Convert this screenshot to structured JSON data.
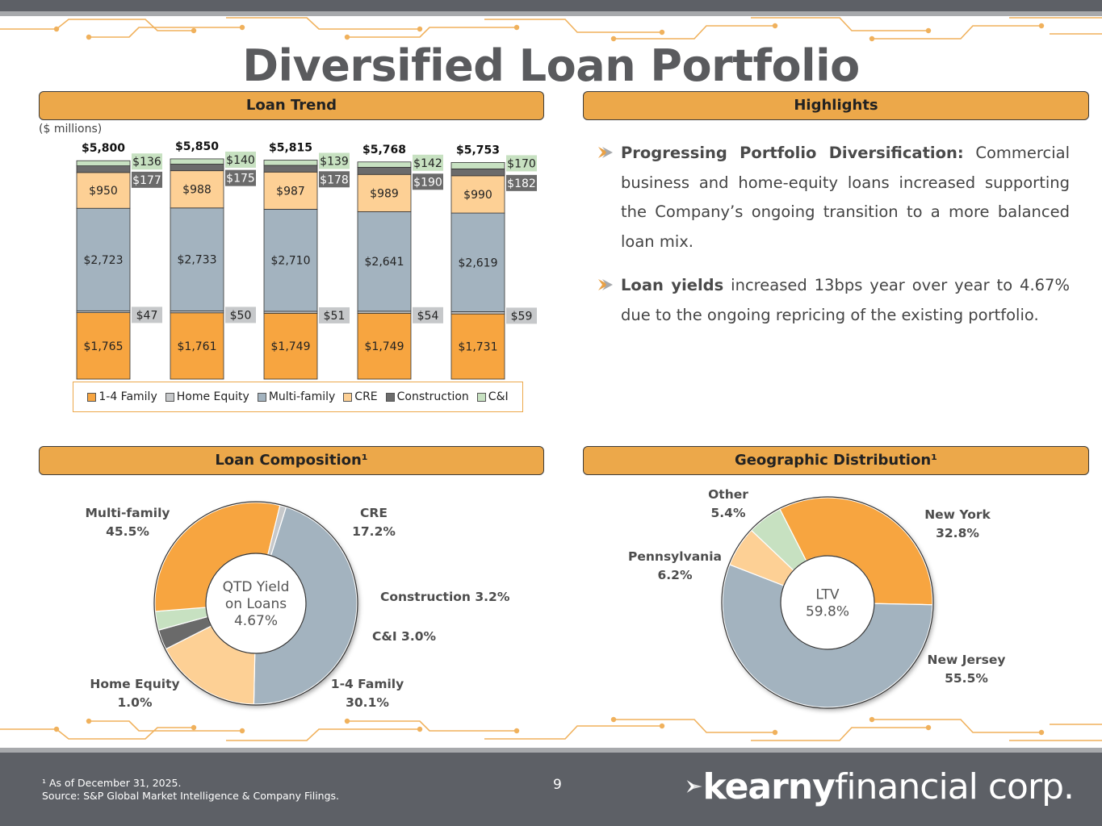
{
  "title": "Diversified Loan Portfolio",
  "sections": {
    "loan_trend": "Loan Trend",
    "highlights": "Highlights",
    "composition": "Loan Composition¹",
    "geo": "Geographic Distribution¹"
  },
  "units_label": "($ millions)",
  "colors": {
    "family_1_4": "#f7a540",
    "home_equity": "#c6c8ca",
    "multi_family": "#a3b3bf",
    "cre": "#fdd095",
    "construction": "#6b6b6b",
    "ci": "#c7e1c1",
    "header_bg": "#eca84a",
    "footer_bg": "#5d6066"
  },
  "highlights": [
    {
      "bold": "Progressing Portfolio Diversification:",
      "text": " Commercial business and home-equity loans increased supporting the Company’s ongoing transition to a more balanced loan mix."
    },
    {
      "bold": "Loan yields",
      "text": " increased 13bps year over year to 4.67% due to the ongoing repricing of the existing portfolio."
    }
  ],
  "chart_data": [
    {
      "type": "bar",
      "stacked": true,
      "title": "Loan Trend",
      "units": "($ millions)",
      "totals": [
        "$5,800",
        "$5,850",
        "$5,815",
        "$5,768",
        "$5,753"
      ],
      "series": [
        {
          "name": "1-4 Family",
          "values": [
            1765,
            1761,
            1749,
            1749,
            1731
          ],
          "labels": [
            "$1,765",
            "$1,761",
            "$1,749",
            "$1,749",
            "$1,731"
          ],
          "color": "#f7a540"
        },
        {
          "name": "Home Equity",
          "values": [
            47,
            50,
            51,
            54,
            59
          ],
          "labels": [
            "$47",
            "$50",
            "$51",
            "$54",
            "$59"
          ],
          "color": "#c6c8ca"
        },
        {
          "name": "Multi-family",
          "values": [
            2723,
            2733,
            2710,
            2641,
            2619
          ],
          "labels": [
            "$2,723",
            "$2,733",
            "$2,710",
            "$2,641",
            "$2,619"
          ],
          "color": "#a3b3bf"
        },
        {
          "name": "CRE",
          "values": [
            950,
            988,
            987,
            989,
            990
          ],
          "labels": [
            "$950",
            "$988",
            "$987",
            "$989",
            "$990"
          ],
          "color": "#fdd095"
        },
        {
          "name": "Construction",
          "values": [
            177,
            175,
            178,
            190,
            182
          ],
          "labels": [
            "$177",
            "$175",
            "$178",
            "$190",
            "$182"
          ],
          "color": "#6b6b6b"
        },
        {
          "name": "C&I",
          "values": [
            136,
            140,
            139,
            142,
            170
          ],
          "labels": [
            "$136",
            "$140",
            "$139",
            "$142",
            "$170"
          ],
          "color": "#c7e1c1"
        }
      ],
      "legend": [
        "1-4 Family",
        "Home Equity",
        "Multi-family",
        "CRE",
        "Construction",
        "C&I"
      ],
      "legend_position": "bottom",
      "grid": false
    },
    {
      "type": "pie",
      "donut": true,
      "title": "Loan Composition¹",
      "center_label": [
        "QTD Yield",
        "on Loans",
        "4.67%"
      ],
      "slices": [
        {
          "name": "Multi-family",
          "value": 45.5,
          "label": "45.5%",
          "color": "#a3b3bf"
        },
        {
          "name": "CRE",
          "value": 17.2,
          "label": "17.2%",
          "color": "#fdd095"
        },
        {
          "name": "Construction",
          "value": 3.2,
          "label": "Construction 3.2%",
          "color": "#6b6b6b"
        },
        {
          "name": "C&I",
          "value": 3.0,
          "label": "C&I 3.0%",
          "color": "#c7e1c1"
        },
        {
          "name": "1-4 Family",
          "value": 30.1,
          "label": "30.1%",
          "color": "#f7a540"
        },
        {
          "name": "Home Equity",
          "value": 1.0,
          "label": "1.0%",
          "color": "#c6c8ca"
        }
      ]
    },
    {
      "type": "pie",
      "donut": true,
      "title": "Geographic Distribution¹",
      "center_label": [
        "LTV",
        "59.8%"
      ],
      "slices": [
        {
          "name": "New York",
          "value": 32.8,
          "label": "32.8%",
          "color": "#f7a540"
        },
        {
          "name": "New Jersey",
          "value": 55.5,
          "label": "55.5%",
          "color": "#a3b3bf"
        },
        {
          "name": "Pennsylvania",
          "value": 6.2,
          "label": "6.2%",
          "color": "#fdd095"
        },
        {
          "name": "Other",
          "value": 5.4,
          "label": "5.4%",
          "color": "#c7e1c1"
        }
      ]
    }
  ],
  "footer": {
    "footnote_line1": "¹ As of December 31, 2025.",
    "footnote_line2": "Source: S&P Global Market Intelligence & Company Filings.",
    "page_number": "9",
    "logo_bold": "kearny",
    "logo_light": "financial corp."
  }
}
